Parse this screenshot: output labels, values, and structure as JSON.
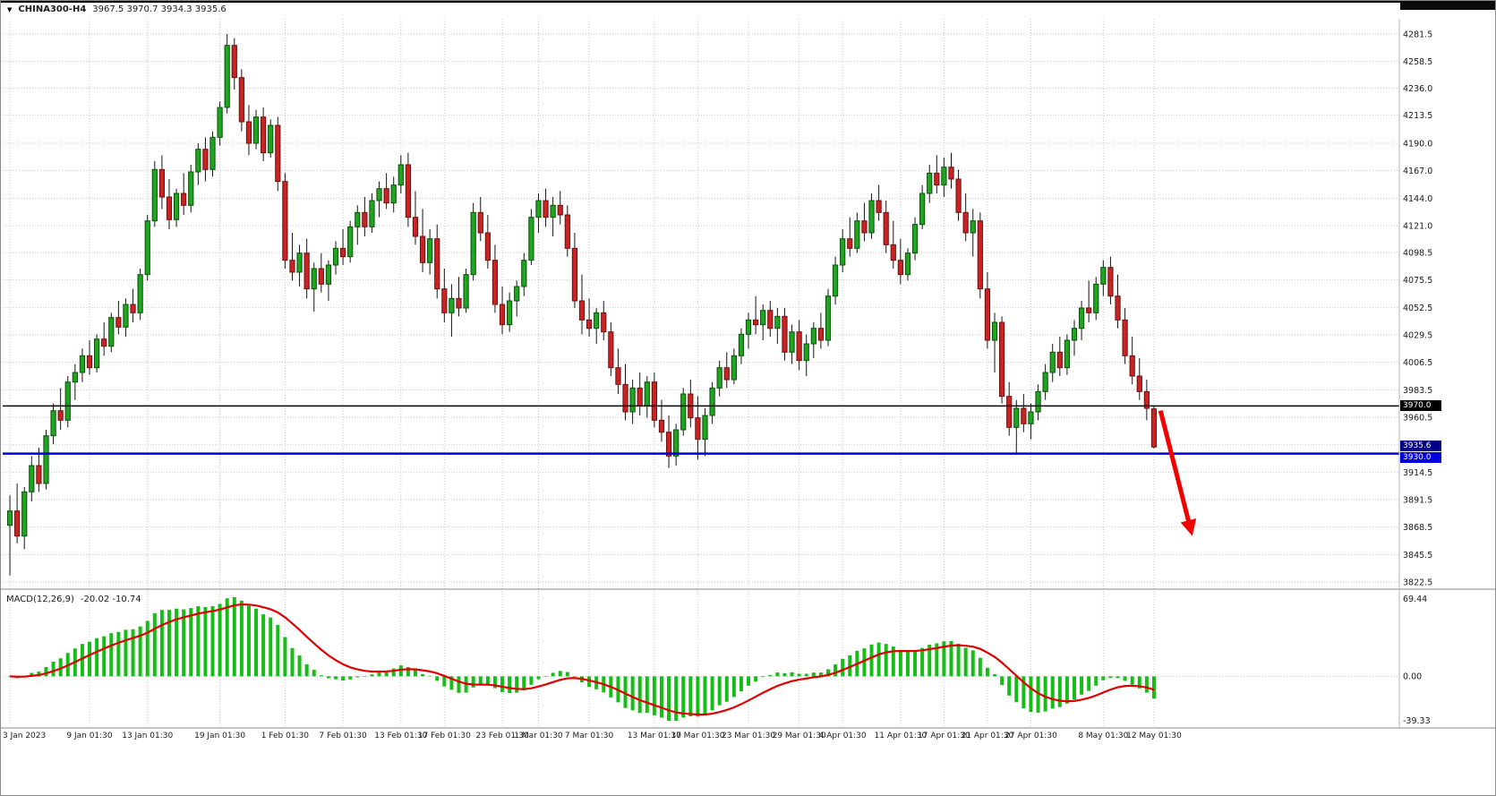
{
  "header": {
    "dropdown_icon": "▼",
    "symbol": "CHINA300-H4",
    "ohlc": "3967.5 3970.7 3934.3 3935.6"
  },
  "price_axis": {
    "tags": {
      "black": "3970.0",
      "last": "3935.6",
      "blue": "3930.0"
    }
  },
  "macd_panel": {
    "label": "MACD(12,26,9)",
    "values": "-20.02 -10.74",
    "axis": [
      "69.44",
      "0.00",
      "-39.33"
    ]
  },
  "chart_data": {
    "type": "candlestick",
    "title": "CHINA300-H4",
    "timeframe": "H4",
    "ylim": [
      3822.5,
      4281.5
    ],
    "up_color": "#1fa51f",
    "down_color": "#c92323",
    "grid": true,
    "price_ticks": [
      4281.5,
      4258.5,
      4236.0,
      4213.5,
      4190.0,
      4167.0,
      4144.0,
      4121.0,
      4098.5,
      4075.5,
      4052.5,
      4029.5,
      4006.5,
      3983.5,
      3960.5,
      3937.5,
      3914.5,
      3891.5,
      3868.5,
      3845.5,
      3822.5
    ],
    "x_labels": [
      {
        "text": "3 Jan 2023",
        "i": 0
      },
      {
        "text": "9 Jan 01:30",
        "i": 11
      },
      {
        "text": "13 Jan 01:30",
        "i": 19
      },
      {
        "text": "19 Jan 01:30",
        "i": 29
      },
      {
        "text": "1 Feb 01:30",
        "i": 38
      },
      {
        "text": "7 Feb 01:30",
        "i": 46
      },
      {
        "text": "13 Feb 01:30",
        "i": 54
      },
      {
        "text": "17 Feb 01:30",
        "i": 60
      },
      {
        "text": "23 Feb 01:30",
        "i": 68
      },
      {
        "text": "1 Mar 01:30",
        "i": 73
      },
      {
        "text": "7 Mar 01:30",
        "i": 80
      },
      {
        "text": "13 Mar 01:30",
        "i": 89
      },
      {
        "text": "17 Mar 01:30",
        "i": 95
      },
      {
        "text": "23 Mar 01:30",
        "i": 102
      },
      {
        "text": "29 Mar 01:30",
        "i": 109
      },
      {
        "text": "4 Apr 01:30",
        "i": 115
      },
      {
        "text": "11 Apr 01:30",
        "i": 123
      },
      {
        "text": "17 Apr 01:30",
        "i": 129
      },
      {
        "text": "21 Apr 01:30",
        "i": 135
      },
      {
        "text": "27 Apr 01:30",
        "i": 141
      },
      {
        "text": "8 May 01:30",
        "i": 151
      },
      {
        "text": "12 May 01:30",
        "i": 158
      }
    ],
    "hlines": [
      {
        "value": 3970.0,
        "color": "#000000",
        "width": 1.5
      },
      {
        "value": 3930.0,
        "color": "#0000dd",
        "width": 2.5
      }
    ],
    "last_price": 3935.6,
    "arrow": {
      "from_index": 158.9,
      "from_price": 3966,
      "to_index": 163.3,
      "to_price": 3861,
      "color": "#f20000"
    },
    "macd": {
      "params": [
        12,
        26,
        9
      ],
      "last_main": -20.02,
      "last_signal": -10.74,
      "axis_max": 69.44,
      "axis_min": -39.33,
      "histogram_color": "#17bd17",
      "signal_color": "#e00000"
    },
    "ohlc": [
      [
        3870,
        3895,
        3828,
        3882
      ],
      [
        3882,
        3905,
        3855,
        3861
      ],
      [
        3861,
        3902,
        3850,
        3898
      ],
      [
        3898,
        3928,
        3890,
        3920
      ],
      [
        3920,
        3935,
        3898,
        3905
      ],
      [
        3905,
        3950,
        3900,
        3945
      ],
      [
        3945,
        3972,
        3938,
        3966
      ],
      [
        3966,
        3985,
        3950,
        3958
      ],
      [
        3958,
        3995,
        3952,
        3990
      ],
      [
        3990,
        4005,
        3975,
        3998
      ],
      [
        3998,
        4018,
        3990,
        4012
      ],
      [
        4012,
        4025,
        3996,
        4002
      ],
      [
        4002,
        4030,
        3998,
        4026
      ],
      [
        4026,
        4040,
        4012,
        4020
      ],
      [
        4020,
        4048,
        4015,
        4044
      ],
      [
        4044,
        4058,
        4030,
        4036
      ],
      [
        4036,
        4060,
        4028,
        4055
      ],
      [
        4055,
        4068,
        4040,
        4048
      ],
      [
        4048,
        4085,
        4042,
        4080
      ],
      [
        4080,
        4130,
        4075,
        4125
      ],
      [
        4125,
        4175,
        4120,
        4168
      ],
      [
        4168,
        4180,
        4135,
        4145
      ],
      [
        4145,
        4160,
        4118,
        4126
      ],
      [
        4126,
        4152,
        4120,
        4148
      ],
      [
        4148,
        4165,
        4130,
        4138
      ],
      [
        4138,
        4172,
        4132,
        4166
      ],
      [
        4166,
        4190,
        4155,
        4185
      ],
      [
        4185,
        4195,
        4158,
        4168
      ],
      [
        4168,
        4200,
        4162,
        4195
      ],
      [
        4195,
        4225,
        4188,
        4220
      ],
      [
        4220,
        4281.5,
        4215,
        4272
      ],
      [
        4272,
        4278,
        4235,
        4245
      ],
      [
        4245,
        4252,
        4200,
        4208
      ],
      [
        4208,
        4222,
        4180,
        4190
      ],
      [
        4190,
        4218,
        4185,
        4212
      ],
      [
        4212,
        4220,
        4175,
        4182
      ],
      [
        4182,
        4210,
        4178,
        4205
      ],
      [
        4205,
        4212,
        4150,
        4158
      ],
      [
        4158,
        4165,
        4085,
        4092
      ],
      [
        4092,
        4115,
        4075,
        4082
      ],
      [
        4082,
        4105,
        4070,
        4098
      ],
      [
        4098,
        4110,
        4060,
        4068
      ],
      [
        4068,
        4090,
        4049,
        4085
      ],
      [
        4085,
        4098,
        4065,
        4072
      ],
      [
        4072,
        4092,
        4058,
        4088
      ],
      [
        4088,
        4108,
        4080,
        4102
      ],
      [
        4102,
        4118,
        4088,
        4095
      ],
      [
        4095,
        4125,
        4090,
        4120
      ],
      [
        4120,
        4138,
        4105,
        4132
      ],
      [
        4132,
        4145,
        4112,
        4120
      ],
      [
        4120,
        4148,
        4115,
        4142
      ],
      [
        4142,
        4158,
        4128,
        4152
      ],
      [
        4152,
        4165,
        4135,
        4140
      ],
      [
        4140,
        4162,
        4132,
        4155
      ],
      [
        4155,
        4180,
        4148,
        4172
      ],
      [
        4172,
        4182,
        4120,
        4128
      ],
      [
        4128,
        4150,
        4105,
        4112
      ],
      [
        4112,
        4135,
        4082,
        4090
      ],
      [
        4090,
        4118,
        4080,
        4110
      ],
      [
        4110,
        4122,
        4060,
        4068
      ],
      [
        4068,
        4085,
        4040,
        4048
      ],
      [
        4048,
        4072,
        4028,
        4060
      ],
      [
        4060,
        4078,
        4045,
        4052
      ],
      [
        4052,
        4085,
        4048,
        4080
      ],
      [
        4080,
        4140,
        4075,
        4132
      ],
      [
        4132,
        4145,
        4108,
        4115
      ],
      [
        4115,
        4130,
        4085,
        4092
      ],
      [
        4092,
        4105,
        4048,
        4055
      ],
      [
        4055,
        4070,
        4030,
        4038
      ],
      [
        4038,
        4065,
        4032,
        4058
      ],
      [
        4058,
        4075,
        4045,
        4070
      ],
      [
        4070,
        4098,
        4062,
        4092
      ],
      [
        4092,
        4135,
        4088,
        4128
      ],
      [
        4128,
        4148,
        4115,
        4142
      ],
      [
        4142,
        4152,
        4120,
        4128
      ],
      [
        4128,
        4145,
        4112,
        4138
      ],
      [
        4138,
        4150,
        4122,
        4130
      ],
      [
        4130,
        4138,
        4095,
        4102
      ],
      [
        4102,
        4115,
        4052,
        4058
      ],
      [
        4058,
        4080,
        4030,
        4042
      ],
      [
        4042,
        4060,
        4028,
        4035
      ],
      [
        4035,
        4052,
        4022,
        4048
      ],
      [
        4048,
        4058,
        4025,
        4032
      ],
      [
        4032,
        4040,
        3995,
        4002
      ],
      [
        4002,
        4018,
        3980,
        3988
      ],
      [
        3988,
        4005,
        3958,
        3965
      ],
      [
        3965,
        3992,
        3955,
        3985
      ],
      [
        3985,
        3998,
        3962,
        3970
      ],
      [
        3970,
        3995,
        3960,
        3990
      ],
      [
        3990,
        3998,
        3952,
        3958
      ],
      [
        3958,
        3975,
        3940,
        3948
      ],
      [
        3948,
        3962,
        3918,
        3928
      ],
      [
        3928,
        3955,
        3920,
        3950
      ],
      [
        3950,
        3985,
        3945,
        3980
      ],
      [
        3980,
        3992,
        3952,
        3960
      ],
      [
        3960,
        3978,
        3925,
        3942
      ],
      [
        3942,
        3968,
        3928,
        3962
      ],
      [
        3962,
        3990,
        3955,
        3985
      ],
      [
        3985,
        4008,
        3978,
        4002
      ],
      [
        4002,
        4015,
        3985,
        3992
      ],
      [
        3992,
        4018,
        3988,
        4012
      ],
      [
        4012,
        4035,
        4005,
        4030
      ],
      [
        4030,
        4048,
        4018,
        4042
      ],
      [
        4042,
        4062,
        4030,
        4038
      ],
      [
        4038,
        4055,
        4025,
        4050
      ],
      [
        4050,
        4058,
        4028,
        4035
      ],
      [
        4035,
        4052,
        4022,
        4045
      ],
      [
        4045,
        4052,
        4008,
        4015
      ],
      [
        4015,
        4038,
        4005,
        4032
      ],
      [
        4032,
        4042,
        4000,
        4008
      ],
      [
        4008,
        4030,
        3995,
        4022
      ],
      [
        4022,
        4040,
        4010,
        4035
      ],
      [
        4035,
        4048,
        4018,
        4025
      ],
      [
        4025,
        4068,
        4020,
        4062
      ],
      [
        4062,
        4095,
        4055,
        4088
      ],
      [
        4088,
        4118,
        4082,
        4110
      ],
      [
        4110,
        4128,
        4095,
        4102
      ],
      [
        4102,
        4132,
        4098,
        4125
      ],
      [
        4125,
        4140,
        4108,
        4115
      ],
      [
        4115,
        4148,
        4110,
        4142
      ],
      [
        4142,
        4155,
        4125,
        4132
      ],
      [
        4132,
        4142,
        4098,
        4105
      ],
      [
        4105,
        4125,
        4085,
        4092
      ],
      [
        4092,
        4110,
        4072,
        4080
      ],
      [
        4080,
        4102,
        4075,
        4098
      ],
      [
        4098,
        4128,
        4092,
        4122
      ],
      [
        4122,
        4155,
        4118,
        4148
      ],
      [
        4148,
        4172,
        4140,
        4165
      ],
      [
        4165,
        4180,
        4148,
        4155
      ],
      [
        4155,
        4178,
        4145,
        4170
      ],
      [
        4170,
        4182,
        4152,
        4160
      ],
      [
        4160,
        4168,
        4125,
        4132
      ],
      [
        4132,
        4148,
        4108,
        4115
      ],
      [
        4115,
        4135,
        4095,
        4125
      ],
      [
        4125,
        4132,
        4060,
        4068
      ],
      [
        4068,
        4082,
        4018,
        4025
      ],
      [
        4025,
        4048,
        3998,
        4040
      ],
      [
        4040,
        4045,
        3972,
        3978
      ],
      [
        3978,
        3990,
        3945,
        3952
      ],
      [
        3952,
        3975,
        3930,
        3968
      ],
      [
        3968,
        3980,
        3948,
        3955
      ],
      [
        3955,
        3972,
        3942,
        3965
      ],
      [
        3965,
        3988,
        3958,
        3982
      ],
      [
        3982,
        4005,
        3975,
        3998
      ],
      [
        3998,
        4022,
        3990,
        4015
      ],
      [
        4015,
        4028,
        3995,
        4002
      ],
      [
        4002,
        4030,
        3996,
        4025
      ],
      [
        4025,
        4042,
        4012,
        4035
      ],
      [
        4035,
        4058,
        4025,
        4052
      ],
      [
        4052,
        4075,
        4040,
        4048
      ],
      [
        4048,
        4078,
        4042,
        4072
      ],
      [
        4072,
        4092,
        4062,
        4086
      ],
      [
        4086,
        4095,
        4055,
        4062
      ],
      [
        4062,
        4080,
        4035,
        4042
      ],
      [
        4042,
        4052,
        4005,
        4012
      ],
      [
        4012,
        4028,
        3988,
        3995
      ],
      [
        3995,
        4010,
        3975,
        3982
      ],
      [
        3982,
        3992,
        3958,
        3968
      ],
      [
        3967.5,
        3970.7,
        3934.3,
        3935.6
      ]
    ]
  }
}
